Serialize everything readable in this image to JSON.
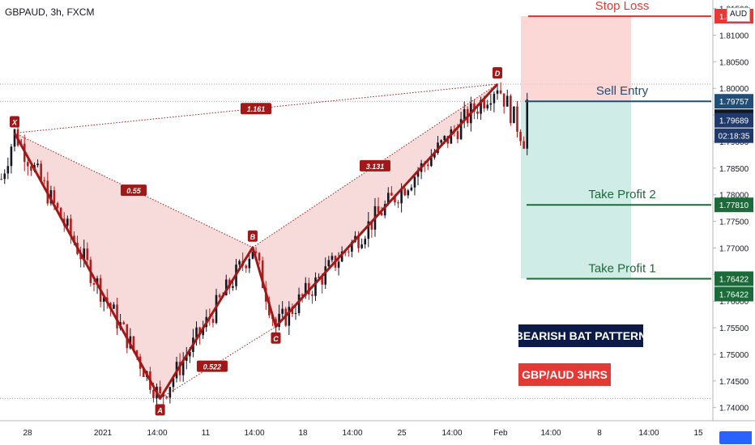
{
  "header": {
    "symbol": "GBPAUD, 3h, FXCM",
    "currency_tag": "AUD"
  },
  "colors": {
    "pattern_line": "#a01818",
    "pattern_fill": "#f3cccc",
    "stop_zone": "#f9c9c7",
    "profit_zone": "#bfe6de",
    "stop_line": "#e53935",
    "entry_line": "#1f4e79",
    "tp_line": "#1b6b3a",
    "candle_up": "#131722",
    "candle_down": "#b71c1c"
  },
  "chart_data": {
    "type": "candlestick",
    "instrument": "GBPAUD",
    "timeframe": "3h",
    "feed": "FXCM",
    "x_ticks": [
      "28",
      "2021",
      "14:00",
      "11",
      "14:00",
      "18",
      "14:00",
      "25",
      "14:00",
      "Feb",
      "14:00",
      "8",
      "14:00",
      "15"
    ],
    "y_ticks": [
      "1.81500",
      "1.81000",
      "1.80500",
      "1.80000",
      "1.79500",
      "1.79000",
      "1.78500",
      "1.78000",
      "1.77500",
      "1.77000",
      "1.76500",
      "1.76000",
      "1.75500",
      "1.75000",
      "1.74500",
      "1.74000"
    ],
    "ylim": [
      1.7395,
      1.8195
    ],
    "pattern": {
      "name": "Bearish Bat",
      "points": [
        {
          "label": "X",
          "x": 4,
          "y": 1.7916
        },
        {
          "label": "A",
          "x": 48,
          "y": 1.7417
        },
        {
          "label": "B",
          "x": 76,
          "y": 1.7701
        },
        {
          "label": "C",
          "x": 83,
          "y": 1.7552
        },
        {
          "label": "D",
          "x": 150,
          "y": 1.8008
        }
      ],
      "ratios": [
        "0.55",
        "0.522",
        "3.131",
        "1.161"
      ]
    },
    "levels": [
      {
        "name": "Stop Loss",
        "value": 1.81357
      },
      {
        "name": "Sell Entry",
        "value": 1.79757
      },
      {
        "name": "Take Profit 2",
        "value": 1.7781
      },
      {
        "name": "Take Profit 1",
        "value": 1.76422
      }
    ],
    "price_labels": [
      {
        "text": "1.81357",
        "value": 1.81357,
        "bg": "#e53935"
      },
      {
        "text": "1.79757",
        "value": 1.79757,
        "bg": "#1f4e79"
      },
      {
        "text": "1.79757",
        "value": 1.79757,
        "bg": "#131722",
        "row_offset": 1
      },
      {
        "text": "1.79689",
        "value": 1.79689,
        "bg": "#1f3a6b",
        "row_offset": 1
      },
      {
        "text": "02:18:35",
        "value": 1.79689,
        "bg": "#1f3a6b",
        "row_offset": 2
      },
      {
        "text": "1.77810",
        "value": 1.7781,
        "bg": "#1b6b3a"
      },
      {
        "text": "1.76422",
        "value": 1.76422,
        "bg": "#1b6b3a"
      },
      {
        "text": "1.76422",
        "value": 1.76422,
        "bg": "#1b6b3a",
        "row_offset": 1
      }
    ],
    "annotations": [
      "BEARISH BAT PATTERN",
      "GBP/AUD   3HRS"
    ]
  }
}
